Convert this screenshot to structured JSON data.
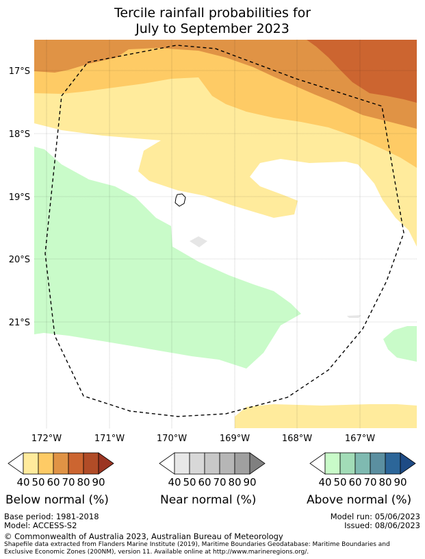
{
  "title": {
    "line1": "Tercile rainfall probabilities for",
    "line2": "July to September 2023"
  },
  "map": {
    "lat_labels": [
      "17°S",
      "18°S",
      "19°S",
      "20°S",
      "21°S"
    ],
    "lon_labels": [
      "172°W",
      "171°W",
      "170°W",
      "169°W",
      "168°W",
      "167°W"
    ],
    "colors": {
      "below_50": "#ffeb9c",
      "below_60": "#fecb65",
      "below_70": "#e09345",
      "below_80": "#cc6530",
      "above_50": "#c9fbc9",
      "land": "#e6e6e6"
    }
  },
  "legends": [
    {
      "name": "Below normal (%)",
      "ticks": [
        "40",
        "50",
        "60",
        "70",
        "80",
        "90"
      ],
      "colors": [
        "#ffeb9c",
        "#fecb65",
        "#e09345",
        "#cc6530",
        "#b14c27",
        "#9b3522"
      ]
    },
    {
      "name": "Near normal (%)",
      "ticks": [
        "40",
        "50",
        "60",
        "70",
        "80",
        "90"
      ],
      "colors": [
        "#e8e8e8",
        "#d8d8d8",
        "#c8c8c8",
        "#b6b6b6",
        "#a0a0a0",
        "#808080"
      ]
    },
    {
      "name": "Above normal (%)",
      "ticks": [
        "40",
        "50",
        "60",
        "70",
        "80",
        "90"
      ],
      "colors": [
        "#c9fbc9",
        "#a2dcb7",
        "#7fbab1",
        "#5b8fa0",
        "#2c6699",
        "#1e4b85"
      ]
    }
  ],
  "footer": {
    "base_period": "Base period: 1981-2018",
    "model": "Model: ACCESS-S2",
    "model_run": "Model run: 05/06/2023",
    "issued": "Issued: 08/06/2023",
    "copyright": "© Commonwealth of Australia 2023, Australian Bureau of Meteorology",
    "shapefile_line1": "Shapefile data extracted from Flanders Marine Institute (2019), Maritime Boundaries Geodatabase: Maritime Boundaries and",
    "shapefile_line2": "Exclusive Economic Zones (200NM), version 11. Available online at http://www.marineregions.org/."
  }
}
